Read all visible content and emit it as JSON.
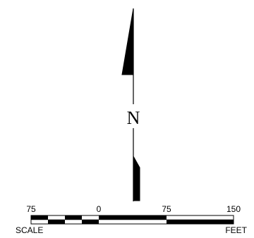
{
  "north_arrow": {
    "letter": "N"
  },
  "scale_bar": {
    "tick_labels": [
      "75",
      "0",
      "75",
      "150"
    ],
    "left_caption": "SCALE",
    "right_caption": "FEET",
    "colors": {
      "fill": "#000000",
      "empty": "#ffffff",
      "stroke": "#000000"
    }
  }
}
